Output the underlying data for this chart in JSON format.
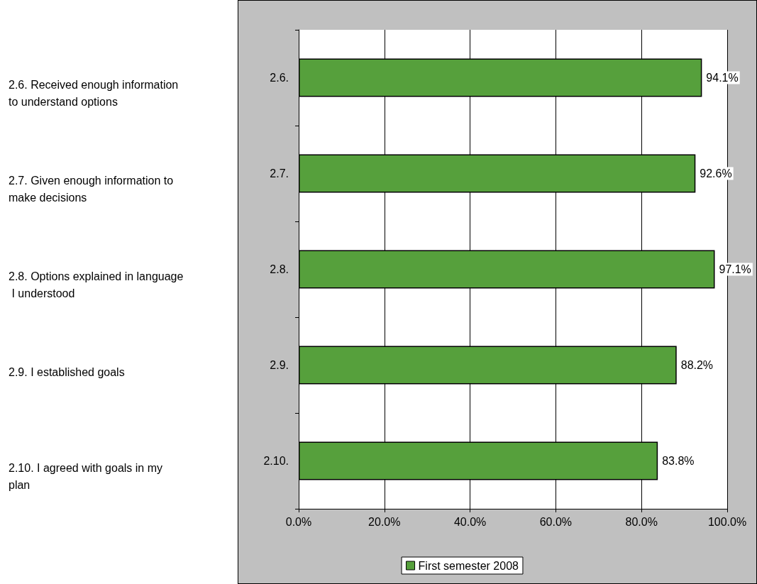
{
  "chart_data": {
    "type": "bar",
    "orientation": "horizontal",
    "categories": [
      "2.6.",
      "2.7.",
      "2.8.",
      "2.9.",
      "2.10."
    ],
    "series": [
      {
        "name": "First semester 2008",
        "color": "#56a03c",
        "values": [
          94.1,
          92.6,
          97.1,
          88.2,
          83.8
        ],
        "value_labels": [
          "94.1%",
          "92.6%",
          "97.1%",
          "88.2%",
          "83.8%"
        ]
      }
    ],
    "xlim": [
      0,
      100
    ],
    "xticks": [
      {
        "value": 0,
        "label": "0.0%"
      },
      {
        "value": 20,
        "label": "20.0%"
      },
      {
        "value": 40,
        "label": "40.0%"
      },
      {
        "value": 60,
        "label": "60.0%"
      },
      {
        "value": 80,
        "label": "80.0%"
      },
      {
        "value": 100,
        "label": "100.0%"
      }
    ],
    "grid": "x",
    "legend": "bottom",
    "annotations": [
      "2.6. Received enough information to understand options",
      "2.7. Given enough information to make decisions",
      "2.8. Options explained in language I understood",
      "2.9. I established goals",
      "2.10. I agreed with goals in my plan"
    ]
  }
}
